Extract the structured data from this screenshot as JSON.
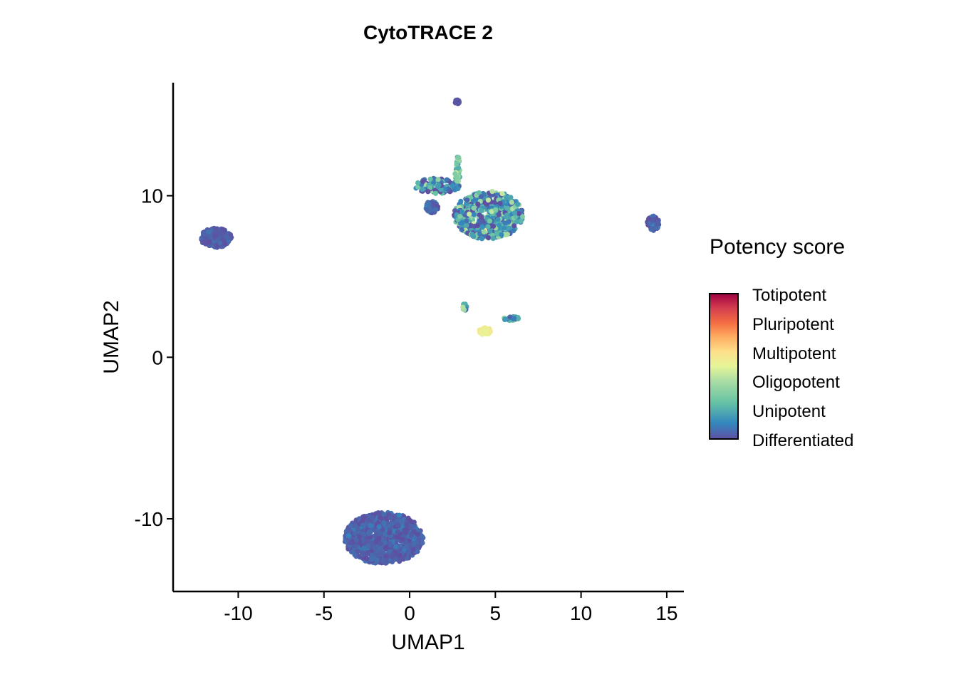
{
  "chart_data": {
    "type": "scatter",
    "title": "CytoTRACE 2",
    "xlabel": "UMAP1",
    "ylabel": "UMAP2",
    "xlim": [
      -13.8,
      16
    ],
    "ylim": [
      -14.5,
      17
    ],
    "x_ticks": [
      -10,
      -5,
      0,
      5,
      10,
      15
    ],
    "x_tick_labels": [
      "-10",
      "-5",
      "0",
      "5",
      "10",
      "15"
    ],
    "y_ticks": [
      10,
      0,
      -10
    ],
    "y_tick_labels": [
      "10",
      "0",
      "-10"
    ],
    "grid": false,
    "legend": {
      "title": "Potency score",
      "placement": "right",
      "labels": [
        "Totipotent",
        "Pluripotent",
        "Multipotent",
        "Oligopotent",
        "Unipotent",
        "Differentiated"
      ],
      "colors": [
        "#9e0142",
        "#f46d43",
        "#fdae61",
        "#e6f598",
        "#66c2a5",
        "#5e4fa2"
      ]
    },
    "colorscale": [
      "#5e4fa2",
      "#3288bd",
      "#66c2a5",
      "#abdda4",
      "#e6f598",
      "#fee08b",
      "#fdae61",
      "#f46d43",
      "#d53e4f",
      "#9e0142"
    ],
    "clusters": [
      {
        "name": "bottom",
        "cx": -1.5,
        "cy": -11.2,
        "rx": 2.3,
        "ry": 1.6,
        "n": 900,
        "potency_mean": 0.04,
        "potency_sd": 0.03
      },
      {
        "name": "left",
        "cx": -11.3,
        "cy": 7.4,
        "rx": 0.9,
        "ry": 0.6,
        "n": 260,
        "potency_mean": 0.03,
        "potency_sd": 0.02
      },
      {
        "name": "top-main",
        "cx": 4.6,
        "cy": 8.8,
        "rx": 2.0,
        "ry": 1.5,
        "n": 620,
        "potency_mean": 0.14,
        "potency_sd": 0.11
      },
      {
        "name": "top-arm",
        "cx": 1.6,
        "cy": 10.6,
        "rx": 1.3,
        "ry": 0.5,
        "n": 110,
        "potency_mean": 0.12,
        "potency_sd": 0.1
      },
      {
        "name": "top-stalk",
        "cx": 2.8,
        "cy": 11.5,
        "rx": 0.15,
        "ry": 1.0,
        "n": 40,
        "potency_mean": 0.25,
        "potency_sd": 0.06
      },
      {
        "name": "top-tip",
        "cx": 2.8,
        "cy": 15.8,
        "rx": 0.15,
        "ry": 0.15,
        "n": 14,
        "potency_mean": 0.02,
        "potency_sd": 0.01
      },
      {
        "name": "top-small",
        "cx": 1.3,
        "cy": 9.3,
        "rx": 0.35,
        "ry": 0.4,
        "n": 40,
        "potency_mean": 0.05,
        "potency_sd": 0.04
      },
      {
        "name": "right",
        "cx": 14.2,
        "cy": 8.3,
        "rx": 0.35,
        "ry": 0.45,
        "n": 60,
        "potency_mean": 0.04,
        "potency_sd": 0.04
      },
      {
        "name": "mid-small",
        "cx": 3.2,
        "cy": 3.1,
        "rx": 0.15,
        "ry": 0.25,
        "n": 14,
        "potency_mean": 0.18,
        "potency_sd": 0.1
      },
      {
        "name": "mid-yellow",
        "cx": 4.4,
        "cy": 1.6,
        "rx": 0.35,
        "ry": 0.25,
        "n": 30,
        "potency_mean": 0.48,
        "potency_sd": 0.02
      },
      {
        "name": "mid-right",
        "cx": 5.9,
        "cy": 2.4,
        "rx": 0.5,
        "ry": 0.12,
        "n": 24,
        "potency_mean": 0.22,
        "potency_sd": 0.1
      }
    ]
  }
}
